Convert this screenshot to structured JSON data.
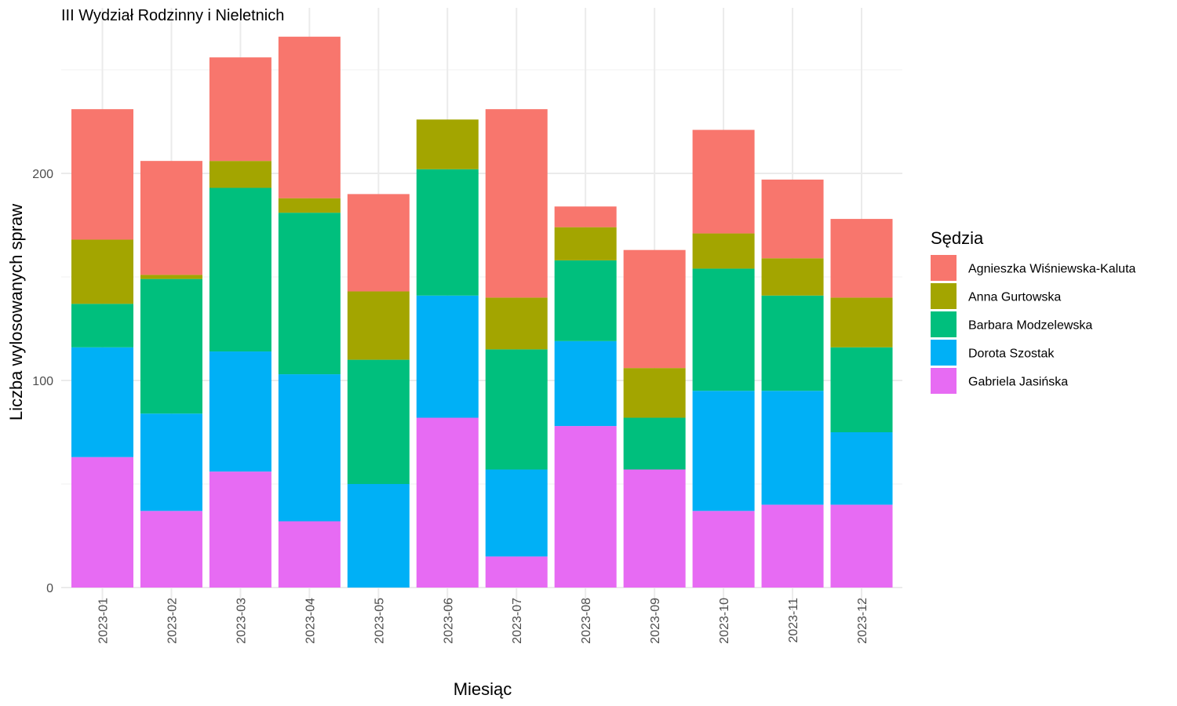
{
  "chart_data": {
    "type": "bar",
    "stacked": true,
    "title": "III Wydział Rodzinny i Nieletnich",
    "xlabel": "Miesiąc",
    "ylabel": "Liczba wylosowanych spraw",
    "ylim": [
      0,
      270
    ],
    "yticks": [
      0,
      100,
      200
    ],
    "grid": true,
    "legend_position": "right",
    "legend_title": "Sędzia",
    "categories": [
      "2023-01",
      "2023-02",
      "2023-03",
      "2023-04",
      "2023-05",
      "2023-06",
      "2023-07",
      "2023-08",
      "2023-09",
      "2023-10",
      "2023-11",
      "2023-12"
    ],
    "series": [
      {
        "name": "Agnieszka Wiśniewska-Kaluta",
        "color": "#F8766D",
        "values": [
          63,
          55,
          50,
          78,
          47,
          0,
          91,
          10,
          57,
          50,
          38,
          38
        ]
      },
      {
        "name": "Anna Gurtowska",
        "color": "#A3A500",
        "values": [
          31,
          2,
          13,
          7,
          33,
          24,
          25,
          16,
          24,
          17,
          18,
          24
        ]
      },
      {
        "name": "Barbara Modzelewska",
        "color": "#00BF7D",
        "values": [
          21,
          65,
          79,
          78,
          60,
          61,
          58,
          39,
          25,
          59,
          46,
          41
        ]
      },
      {
        "name": "Dorota Szostak",
        "color": "#00B0F6",
        "values": [
          53,
          47,
          58,
          71,
          50,
          59,
          42,
          41,
          0,
          58,
          55,
          35
        ]
      },
      {
        "name": "Gabriela Jasińska",
        "color": "#E76BF3",
        "values": [
          63,
          37,
          56,
          32,
          0,
          82,
          15,
          78,
          57,
          37,
          40,
          40
        ]
      }
    ],
    "stack_order_bottom_to_top": [
      "Gabriela Jasińska",
      "Dorota Szostak",
      "Barbara Modzelewska",
      "Anna Gurtowska",
      "Agnieszka Wiśniewska-Kaluta"
    ],
    "legend_order": [
      "Agnieszka Wiśniewska-Kaluta",
      "Anna Gurtowska",
      "Barbara Modzelewska",
      "Dorota Szostak",
      "Gabriela Jasińska"
    ]
  }
}
